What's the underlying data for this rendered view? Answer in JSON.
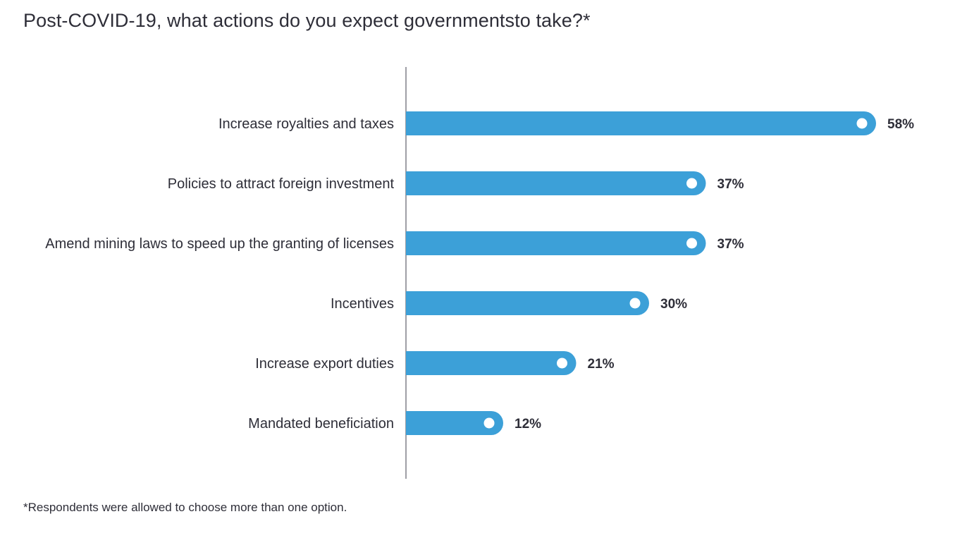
{
  "chart_data": {
    "type": "bar",
    "orientation": "horizontal",
    "title": "Post-COVID-19, what actions do you expect governmentsto take?*",
    "categories": [
      "Increase royalties and taxes",
      "Policies to attract foreign investment",
      "Amend mining laws to speed up the granting of licenses",
      "Incentives",
      "Increase export duties",
      "Mandated beneficiation"
    ],
    "values": [
      58,
      37,
      37,
      30,
      21,
      12
    ],
    "value_labels": [
      "58%",
      "37%",
      "37%",
      "30%",
      "21%",
      "12%"
    ],
    "unit": "%",
    "xlim": [
      0,
      58
    ],
    "xlabel": "",
    "ylabel": "",
    "grid": false,
    "bar_color": "#3ca0d8",
    "marker_color": "#ffffff",
    "axis_color": "#5f5f6a",
    "footnote": "*Respondents were allowed to choose more than one option."
  }
}
